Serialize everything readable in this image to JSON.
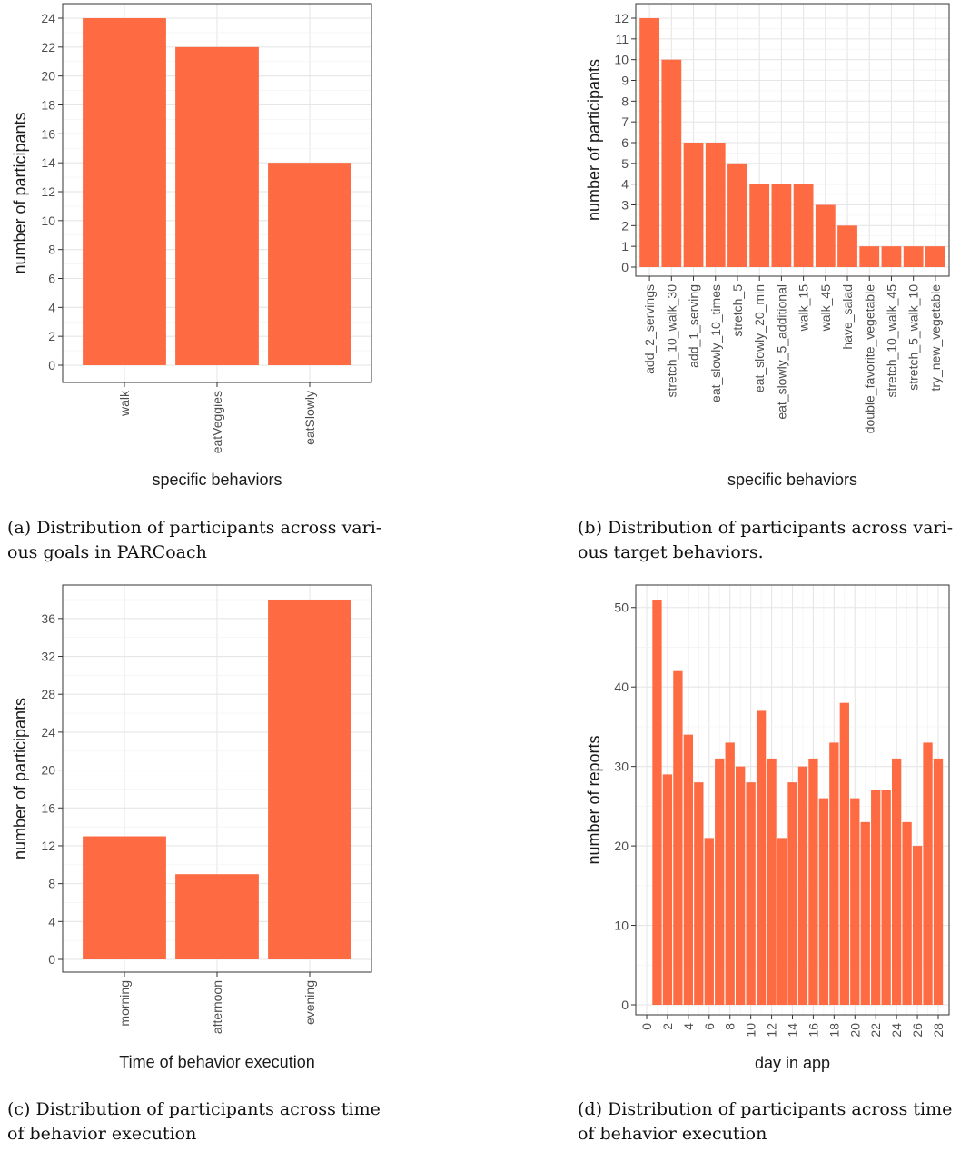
{
  "bar_color": "#fe6a41",
  "chart_data": [
    {
      "type": "bar",
      "categories": [
        "walk",
        "eatVeggies",
        "eatSlowly"
      ],
      "values": [
        24,
        22,
        14
      ],
      "xlabel": "specific behaviors",
      "ylabel": "number of participants",
      "ylim": [
        0,
        24
      ],
      "yticks": [
        0,
        2,
        4,
        6,
        8,
        10,
        12,
        14,
        16,
        18,
        20,
        22,
        24
      ],
      "grid": true,
      "caption": "(a) Distribution of participants across vari- ous goals in PARCoach"
    },
    {
      "type": "bar",
      "categories": [
        "add_2_servings",
        "stretch_10_walk_30",
        "add_1_serving",
        "eat_slowly_10_times",
        "stretch_5",
        "eat_slowly_20_min",
        "eat_slowly_5_additional",
        "walk_15",
        "walk_45",
        "have_salad",
        "double_favorite_vegetable",
        "stretch_10_walk_45",
        "stretch_5_walk_10",
        "try_new_vegetable"
      ],
      "values": [
        12,
        10,
        6,
        6,
        5,
        4,
        4,
        4,
        3,
        2,
        1,
        1,
        1,
        1
      ],
      "xlabel": "specific behaviors",
      "ylabel": "number of participants",
      "ylim": [
        0,
        12
      ],
      "yticks": [
        0,
        1,
        2,
        3,
        4,
        5,
        6,
        7,
        8,
        9,
        10,
        11,
        12
      ],
      "grid": true,
      "caption": "(b) Distribution of participants across vari- ous target behaviors."
    },
    {
      "type": "bar",
      "categories": [
        "morning",
        "afternoon",
        "evening"
      ],
      "values": [
        13,
        9,
        38
      ],
      "xlabel": "Time of behavior execution",
      "ylabel": "number of participants",
      "ylim": [
        0,
        38
      ],
      "yticks": [
        0,
        4,
        8,
        12,
        16,
        20,
        24,
        28,
        32,
        36
      ],
      "grid": true,
      "caption": "(c) Distribution of participants across time of behavior execution"
    },
    {
      "type": "bar",
      "categories": [
        "1",
        "2",
        "3",
        "4",
        "5",
        "6",
        "7",
        "8",
        "9",
        "10",
        "11",
        "12",
        "13",
        "14",
        "15",
        "16",
        "17",
        "18",
        "19",
        "20",
        "21",
        "22",
        "23",
        "24",
        "25",
        "26",
        "27",
        "28"
      ],
      "x": [
        1,
        2,
        3,
        4,
        5,
        6,
        7,
        8,
        9,
        10,
        11,
        12,
        13,
        14,
        15,
        16,
        17,
        18,
        19,
        20,
        21,
        22,
        23,
        24,
        25,
        26,
        27,
        28
      ],
      "values": [
        51,
        29,
        42,
        34,
        28,
        21,
        31,
        33,
        30,
        28,
        37,
        31,
        21,
        28,
        30,
        31,
        26,
        33,
        38,
        26,
        23,
        27,
        27,
        31,
        23,
        20,
        33,
        31
      ],
      "xticks": [
        "0",
        "2",
        "4",
        "6",
        "8",
        "10",
        "12",
        "14",
        "16",
        "18",
        "20",
        "22",
        "24",
        "26",
        "28"
      ],
      "xlabel": "day in app",
      "ylabel": "number of reports",
      "ylim": [
        0,
        51
      ],
      "yticks": [
        0,
        10,
        20,
        30,
        40,
        50
      ],
      "grid": true,
      "caption": "(d) Distribution of participants across time of behavior execution"
    }
  ]
}
